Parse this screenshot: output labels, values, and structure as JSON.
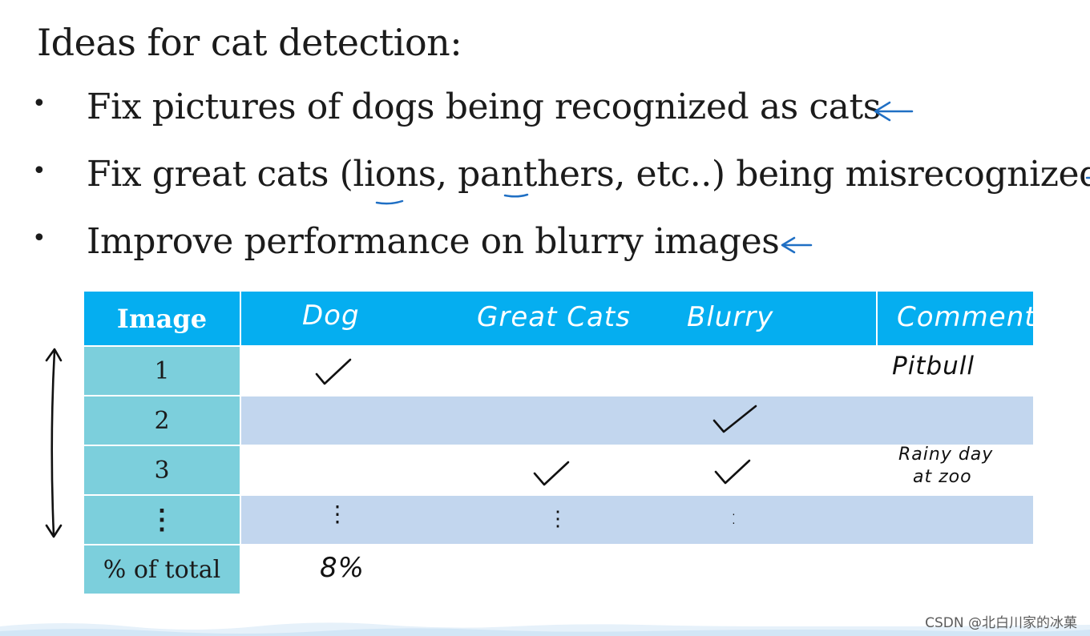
{
  "slide": {
    "title": "Ideas for cat detection:",
    "bullets": [
      {
        "marker": "•",
        "text": "Fix pictures of dogs being recognized as cats"
      },
      {
        "marker": "•",
        "text": "Fix great cats (lions, panthers, etc..) being misrecognized"
      },
      {
        "marker": "•",
        "text": "Improve performance on blurry images"
      }
    ]
  },
  "table": {
    "headers": {
      "image": "Image",
      "dog": "Dog",
      "great_cats": "Great Cats",
      "blurry": "Blurry",
      "comments": "Comments"
    },
    "rows": [
      {
        "image": "1",
        "dog": true,
        "great_cats": false,
        "blurry": false,
        "comments": "Pitbull"
      },
      {
        "image": "2",
        "dog": false,
        "great_cats": false,
        "blurry": true,
        "comments": ""
      },
      {
        "image": "3",
        "dog": false,
        "great_cats": true,
        "blurry": true,
        "comments_line1": "Rainy day",
        "comments_line2": "at zoo"
      },
      {
        "image": "⋮",
        "dog": "⋮",
        "great_cats": "⋮",
        "blurry": ":"
      }
    ],
    "total": {
      "label": "% of total",
      "dog": "8%"
    }
  },
  "annotations": {
    "arrow_icon": "left-arrow-icon",
    "check_icon": "checkmark-icon",
    "ink_color": "#1f6fc4",
    "header_color": "#05aef0",
    "first_col_color": "#7ccfdc",
    "stripe_color": "#c2d6ee"
  },
  "watermark": "CSDN @北白川家的冰菓"
}
